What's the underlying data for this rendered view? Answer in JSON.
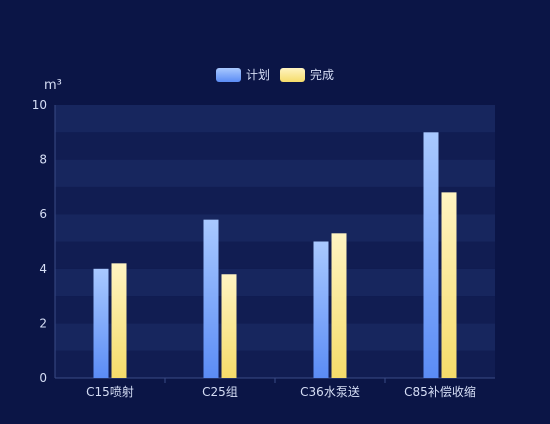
{
  "chart_data": {
    "type": "bar",
    "unit": "m³",
    "categories": [
      "C15喷射",
      "C25组",
      "C36水泵送",
      "C85补偿收缩"
    ],
    "series": [
      {
        "name": "计划",
        "values": [
          4,
          5.8,
          5,
          9
        ]
      },
      {
        "name": "完成",
        "values": [
          4.2,
          3.8,
          5.3,
          6.8
        ]
      }
    ],
    "ylim": [
      0,
      10
    ],
    "yticks": [
      0,
      2,
      4,
      6,
      8,
      10
    ],
    "legend_position": "top-center",
    "grid": "alternating-bands",
    "colors": {
      "background": "#0b1546",
      "plan_top": "#a9c9ff",
      "plan_bottom": "#5b8cf5",
      "done_top": "#fff4c2",
      "done_bottom": "#f5dc6a",
      "band": "#17265e",
      "axis": "#3a4a86",
      "text": "#d6def5"
    }
  }
}
